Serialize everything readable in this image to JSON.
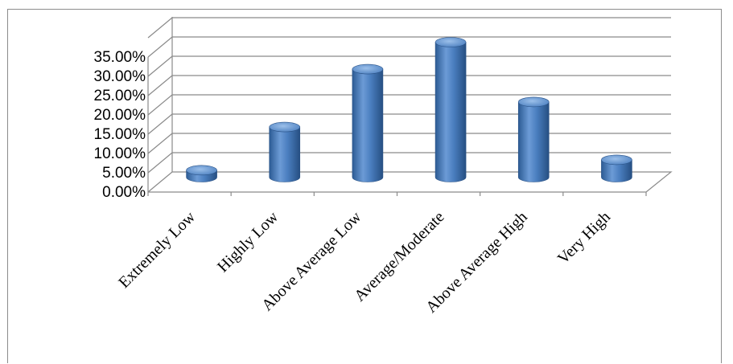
{
  "chart_data": {
    "type": "bar",
    "title": "",
    "xlabel": "",
    "ylabel": "",
    "categories": [
      "Extremely Low",
      "Highly Low",
      "Above Average Low",
      "Average/Moderate",
      "Above Average High",
      "Very High"
    ],
    "values": [
      1.8,
      13.0,
      28.0,
      35.0,
      19.5,
      4.5
    ],
    "ylim": [
      0,
      35
    ],
    "yticks": [
      "0.00%",
      "5.00%",
      "10.00%",
      "15.00%",
      "20.00%",
      "25.00%",
      "30.00%",
      "35.00%"
    ],
    "ytick_values": [
      0,
      5,
      10,
      15,
      20,
      25,
      30,
      35
    ],
    "legend": "none",
    "grid": true,
    "style": "3d-cylinder",
    "colors": {
      "bar": "#4a7ebf",
      "bar_dark": "#2c5b94",
      "bar_light": "#8fb5e3",
      "grid": "#8a8a8a"
    }
  }
}
